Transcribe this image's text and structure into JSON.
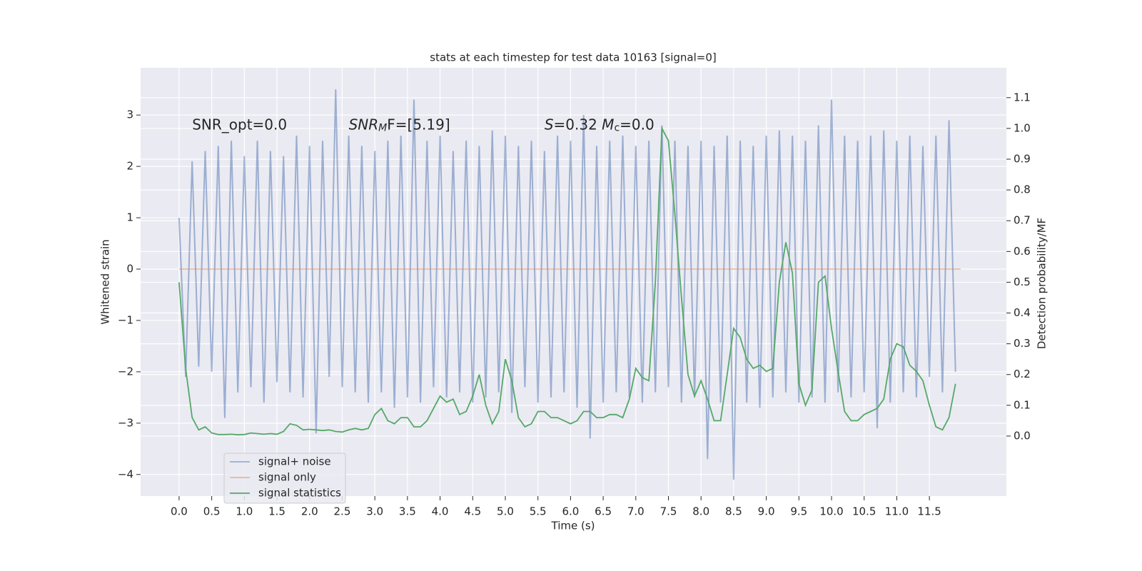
{
  "chart_data": {
    "type": "line",
    "title": "stats at each timestep for test data 10163 [signal=0]",
    "xlabel": "Time (s)",
    "ylabel": "Whitened strain",
    "y2label": "Detection probability/MF",
    "xlim": [
      -0.59,
      12.68
    ],
    "ylim": [
      -4.42,
      3.92
    ],
    "y2lim": [
      -0.195,
      1.197
    ],
    "xticks": [
      {
        "value": 0,
        "label": "0.0"
      },
      0.5,
      {
        "value": 1,
        "label": "1.0"
      },
      1.5,
      {
        "value": 2,
        "label": "2.0"
      },
      2.5,
      {
        "value": 3,
        "label": "3.0"
      },
      3.5,
      {
        "value": 4,
        "label": "4.0"
      },
      4.5,
      {
        "value": 5,
        "label": "5.0"
      },
      5.5,
      {
        "value": 6,
        "label": "6.0"
      },
      6.5,
      {
        "value": 7,
        "label": "7.0"
      },
      7.5,
      {
        "value": 8,
        "label": "8.0"
      },
      8.5,
      {
        "value": 9,
        "label": "9.0"
      },
      9.5,
      {
        "value": 10,
        "label": "10.0"
      },
      10.5,
      {
        "value": 11,
        "label": "11.0"
      },
      11.5
    ],
    "yticks": [
      {
        "value": -4,
        "label": "−4"
      },
      {
        "value": -3,
        "label": "−3"
      },
      {
        "value": -2,
        "label": "−2"
      },
      {
        "value": -1,
        "label": "−1"
      },
      0,
      1,
      2,
      3
    ],
    "y2ticks": [
      {
        "value": 0,
        "label": "0.0"
      },
      0.1,
      0.2,
      0.3,
      0.4,
      0.5,
      0.6,
      0.7,
      0.8,
      0.9,
      {
        "value": 1,
        "label": "1.0"
      },
      1.1
    ],
    "grid": true,
    "legend": "lower left",
    "x": [
      0,
      0.1,
      0.2,
      0.3,
      0.4,
      0.5,
      0.6,
      0.7,
      0.8,
      0.9,
      1,
      1.1,
      1.2,
      1.3,
      1.4,
      1.5,
      1.6,
      1.7,
      1.8,
      1.9,
      2,
      2.1,
      2.2,
      2.3,
      2.4,
      2.5,
      2.6,
      2.7,
      2.8,
      2.9,
      3,
      3.1,
      3.2,
      3.3,
      3.4,
      3.5,
      3.6,
      3.7,
      3.8,
      3.9,
      4,
      4.1,
      4.2,
      4.3,
      4.4,
      4.5,
      4.6,
      4.7,
      4.8,
      4.9,
      5,
      5.1,
      5.2,
      5.3,
      5.4,
      5.5,
      5.6,
      5.7,
      5.8,
      5.9,
      6,
      6.1,
      6.2,
      6.3,
      6.4,
      6.5,
      6.6,
      6.7,
      6.8,
      6.9,
      7,
      7.1,
      7.2,
      7.3,
      7.4,
      7.5,
      7.6,
      7.7,
      7.8,
      7.9,
      8,
      8.1,
      8.2,
      8.3,
      8.4,
      8.5,
      8.6,
      8.7,
      8.8,
      8.9,
      9,
      9.1,
      9.2,
      9.3,
      9.4,
      9.5,
      9.6,
      9.7,
      9.8,
      9.9,
      10,
      10.1,
      10.2,
      10.3,
      10.4,
      10.5,
      10.6,
      10.7,
      10.8,
      10.9,
      11,
      11.1,
      11.2,
      11.3,
      11.4,
      11.5,
      11.6,
      11.7,
      11.8,
      11.9
    ],
    "series": [
      {
        "name": "signal+ noise",
        "color": "#4c72b0",
        "opacity": 0.5,
        "values": [
          1.0,
          -2.1,
          2.1,
          -1.9,
          2.3,
          -2.0,
          2.4,
          -2.9,
          2.5,
          -2.4,
          2.2,
          -2.3,
          2.5,
          -2.6,
          2.3,
          -2.2,
          2.2,
          -2.4,
          2.6,
          -2.5,
          2.4,
          -3.2,
          2.5,
          -2.1,
          3.5,
          -2.3,
          2.6,
          -2.4,
          2.4,
          -2.6,
          2.3,
          -2.4,
          2.5,
          -2.7,
          2.6,
          -2.5,
          3.3,
          -2.6,
          2.5,
          -2.3,
          2.6,
          -2.5,
          2.3,
          -2.4,
          2.5,
          -2.6,
          2.4,
          -2.5,
          2.7,
          -2.4,
          2.6,
          -2.8,
          2.4,
          -2.3,
          2.5,
          -2.6,
          2.3,
          -2.5,
          2.6,
          -2.4,
          2.5,
          -2.7,
          3.0,
          -3.3,
          2.4,
          -2.6,
          2.5,
          -2.4,
          2.6,
          -2.5,
          2.4,
          -2.6,
          2.5,
          -2.4,
          2.8,
          -2.3,
          2.5,
          -2.6,
          2.4,
          -2.5,
          2.5,
          -3.7,
          2.4,
          -2.6,
          2.6,
          -4.1,
          2.5,
          -2.6,
          2.4,
          -2.7,
          2.6,
          -2.5,
          2.7,
          -2.4,
          2.6,
          -2.6,
          2.5,
          -2.5,
          2.8,
          -2.6,
          3.3,
          -2.4,
          2.6,
          -2.5,
          2.5,
          -2.4,
          2.6,
          -3.1,
          2.7,
          -2.6,
          2.5,
          -2.4,
          2.6,
          -2.5,
          2.4,
          -2.1,
          2.6,
          -2.4,
          2.9,
          -2.0
        ]
      },
      {
        "name": "signal only",
        "color": "#dd8452",
        "opacity": 0.5,
        "x": [
          0,
          11.98
        ],
        "values": [
          0,
          0
        ]
      },
      {
        "name": "signal statistics",
        "color": "#55a868",
        "axis": "y2",
        "values": [
          0.5,
          0.22,
          0.06,
          0.02,
          0.03,
          0.01,
          0.005,
          0.005,
          0.006,
          0.004,
          0.005,
          0.01,
          0.008,
          0.006,
          0.008,
          0.006,
          0.015,
          0.04,
          0.035,
          0.02,
          0.022,
          0.02,
          0.018,
          0.02,
          0.015,
          0.013,
          0.02,
          0.025,
          0.02,
          0.025,
          0.07,
          0.09,
          0.05,
          0.04,
          0.06,
          0.06,
          0.03,
          0.03,
          0.05,
          0.09,
          0.13,
          0.11,
          0.12,
          0.07,
          0.08,
          0.13,
          0.2,
          0.1,
          0.04,
          0.08,
          0.25,
          0.18,
          0.06,
          0.03,
          0.04,
          0.08,
          0.08,
          0.06,
          0.06,
          0.05,
          0.04,
          0.05,
          0.08,
          0.08,
          0.06,
          0.06,
          0.07,
          0.07,
          0.06,
          0.12,
          0.22,
          0.19,
          0.18,
          0.5,
          1.0,
          0.96,
          0.72,
          0.45,
          0.2,
          0.13,
          0.18,
          0.12,
          0.05,
          0.05,
          0.2,
          0.35,
          0.32,
          0.25,
          0.22,
          0.23,
          0.21,
          0.22,
          0.5,
          0.63,
          0.53,
          0.17,
          0.1,
          0.15,
          0.5,
          0.52,
          0.35,
          0.21,
          0.08,
          0.05,
          0.05,
          0.07,
          0.08,
          0.09,
          0.12,
          0.25,
          0.3,
          0.29,
          0.23,
          0.21,
          0.18,
          0.1,
          0.03,
          0.02,
          0.06,
          0.17
        ]
      }
    ],
    "annotations": [
      {
        "parts": [
          "SNR_opt=0.0"
        ],
        "x": 0.2
      },
      {
        "parts": [
          "SNR",
          "M",
          "F=[5.19]"
        ],
        "x": 2.6
      },
      {
        "parts": [
          "S",
          "=0.32   ",
          "M",
          "c",
          "=0.0"
        ],
        "x": 5.6
      }
    ]
  }
}
